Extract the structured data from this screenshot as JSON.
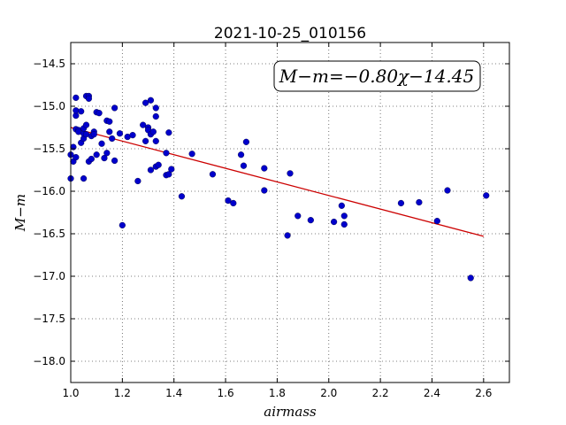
{
  "chart_data": {
    "type": "scatter",
    "title": "2021-10-25_010156",
    "xlabel": "airmass",
    "ylabel": "M−m",
    "xlim": [
      1.0,
      2.7
    ],
    "ylim": [
      -18.25,
      -14.25
    ],
    "y_inverted": true,
    "grid": true,
    "xticks": [
      "1.0",
      "1.2",
      "1.4",
      "1.6",
      "1.8",
      "2.0",
      "2.2",
      "2.4",
      "2.6"
    ],
    "yticks": [
      "−14.5",
      "−15.0",
      "−15.5",
      "−16.0",
      "−16.5",
      "−17.0",
      "−17.5",
      "−18.0"
    ],
    "point_color": "#0000cc",
    "line_color": "#cc0000",
    "fit": {
      "label": "M−m=−0.80χ−14.45",
      "x": [
        1.0,
        2.6
      ],
      "y": [
        -15.25,
        -16.53
      ]
    },
    "points": [
      {
        "x": 1.0,
        "y": -15.57
      },
      {
        "x": 1.0,
        "y": -15.85
      },
      {
        "x": 1.01,
        "y": -15.65
      },
      {
        "x": 1.01,
        "y": -15.48
      },
      {
        "x": 1.02,
        "y": -15.27
      },
      {
        "x": 1.02,
        "y": -15.6
      },
      {
        "x": 1.02,
        "y": -15.11
      },
      {
        "x": 1.02,
        "y": -15.05
      },
      {
        "x": 1.02,
        "y": -14.9
      },
      {
        "x": 1.03,
        "y": -15.28
      },
      {
        "x": 1.03,
        "y": -15.3
      },
      {
        "x": 1.04,
        "y": -15.06
      },
      {
        "x": 1.04,
        "y": -15.43
      },
      {
        "x": 1.05,
        "y": -15.38
      },
      {
        "x": 1.05,
        "y": -15.32
      },
      {
        "x": 1.05,
        "y": -15.26
      },
      {
        "x": 1.05,
        "y": -15.85
      },
      {
        "x": 1.06,
        "y": -14.88
      },
      {
        "x": 1.06,
        "y": -15.22
      },
      {
        "x": 1.06,
        "y": -15.33
      },
      {
        "x": 1.07,
        "y": -14.88
      },
      {
        "x": 1.07,
        "y": -14.91
      },
      {
        "x": 1.07,
        "y": -15.65
      },
      {
        "x": 1.08,
        "y": -15.35
      },
      {
        "x": 1.08,
        "y": -15.62
      },
      {
        "x": 1.09,
        "y": -15.3
      },
      {
        "x": 1.09,
        "y": -15.33
      },
      {
        "x": 1.1,
        "y": -15.57
      },
      {
        "x": 1.1,
        "y": -15.07
      },
      {
        "x": 1.11,
        "y": -15.08
      },
      {
        "x": 1.12,
        "y": -15.44
      },
      {
        "x": 1.13,
        "y": -15.61
      },
      {
        "x": 1.14,
        "y": -15.55
      },
      {
        "x": 1.14,
        "y": -15.17
      },
      {
        "x": 1.15,
        "y": -15.18
      },
      {
        "x": 1.15,
        "y": -15.3
      },
      {
        "x": 1.16,
        "y": -15.38
      },
      {
        "x": 1.17,
        "y": -15.02
      },
      {
        "x": 1.17,
        "y": -15.64
      },
      {
        "x": 1.19,
        "y": -15.32
      },
      {
        "x": 1.2,
        "y": -16.4
      },
      {
        "x": 1.22,
        "y": -15.36
      },
      {
        "x": 1.24,
        "y": -15.34
      },
      {
        "x": 1.26,
        "y": -15.88
      },
      {
        "x": 1.28,
        "y": -15.22
      },
      {
        "x": 1.29,
        "y": -14.96
      },
      {
        "x": 1.29,
        "y": -15.41
      },
      {
        "x": 1.3,
        "y": -15.25
      },
      {
        "x": 1.3,
        "y": -15.28
      },
      {
        "x": 1.31,
        "y": -15.33
      },
      {
        "x": 1.31,
        "y": -15.75
      },
      {
        "x": 1.31,
        "y": -14.93
      },
      {
        "x": 1.32,
        "y": -15.3
      },
      {
        "x": 1.33,
        "y": -15.71
      },
      {
        "x": 1.33,
        "y": -15.02
      },
      {
        "x": 1.33,
        "y": -15.12
      },
      {
        "x": 1.33,
        "y": -15.41
      },
      {
        "x": 1.34,
        "y": -15.69
      },
      {
        "x": 1.37,
        "y": -15.55
      },
      {
        "x": 1.37,
        "y": -15.81
      },
      {
        "x": 1.38,
        "y": -15.31
      },
      {
        "x": 1.38,
        "y": -15.8
      },
      {
        "x": 1.39,
        "y": -15.74
      },
      {
        "x": 1.43,
        "y": -16.06
      },
      {
        "x": 1.47,
        "y": -15.56
      },
      {
        "x": 1.55,
        "y": -15.8
      },
      {
        "x": 1.61,
        "y": -16.11
      },
      {
        "x": 1.63,
        "y": -16.14
      },
      {
        "x": 1.66,
        "y": -15.57
      },
      {
        "x": 1.67,
        "y": -15.7
      },
      {
        "x": 1.68,
        "y": -15.42
      },
      {
        "x": 1.75,
        "y": -15.73
      },
      {
        "x": 1.75,
        "y": -15.99
      },
      {
        "x": 1.84,
        "y": -16.52
      },
      {
        "x": 1.85,
        "y": -15.79
      },
      {
        "x": 1.88,
        "y": -16.29
      },
      {
        "x": 1.93,
        "y": -16.34
      },
      {
        "x": 2.02,
        "y": -16.36
      },
      {
        "x": 2.05,
        "y": -16.17
      },
      {
        "x": 2.06,
        "y": -16.29
      },
      {
        "x": 2.06,
        "y": -16.39
      },
      {
        "x": 2.28,
        "y": -16.14
      },
      {
        "x": 2.35,
        "y": -16.13
      },
      {
        "x": 2.42,
        "y": -16.35
      },
      {
        "x": 2.46,
        "y": -15.99
      },
      {
        "x": 2.55,
        "y": -17.02
      },
      {
        "x": 2.61,
        "y": -16.05
      }
    ]
  }
}
